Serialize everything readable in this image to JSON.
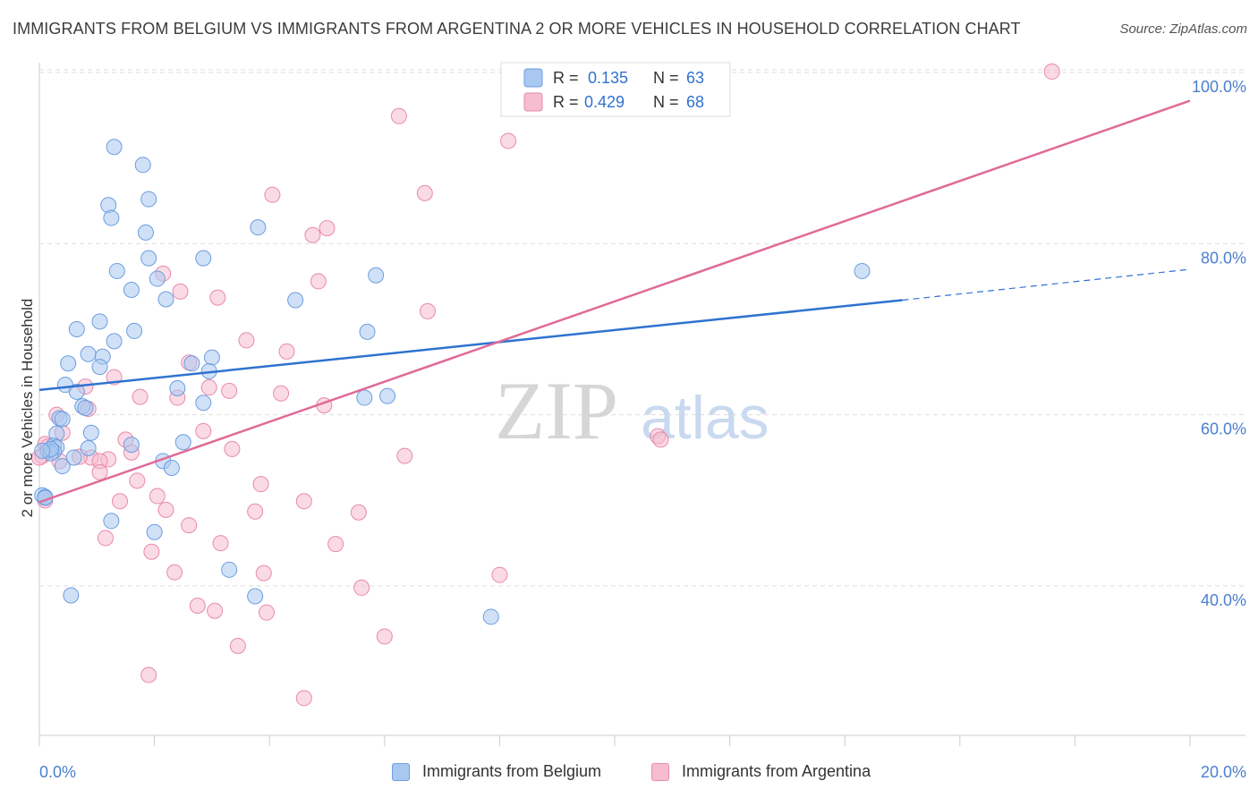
{
  "title": "IMMIGRANTS FROM BELGIUM VS IMMIGRANTS FROM ARGENTINA 2 OR MORE VEHICLES IN HOUSEHOLD CORRELATION CHART",
  "source": "Source: ZipAtlas.com",
  "watermark": {
    "zip": "ZIP",
    "atlas": "atlas"
  },
  "colors": {
    "belgium_fill": "#a9c8f0",
    "belgium_stroke": "#6d9de0",
    "belgium_line": "#2f72d0",
    "argentina_fill": "#f6bcd0",
    "argentina_stroke": "#e88aab",
    "argentina_line": "#e06a97",
    "axis_text": "#4a7fcf",
    "grid": "#dddddd"
  },
  "legend_top": {
    "rows": [
      {
        "r_label": "R =",
        "r_value": "0.135",
        "n_label": "N =",
        "n_value": "63"
      },
      {
        "r_label": "R =",
        "r_value": "0.429",
        "n_label": "N =",
        "n_value": "68"
      }
    ]
  },
  "legend_bottom": {
    "belgium": "Immigrants from Belgium",
    "argentina": "Immigrants from Argentina"
  },
  "chart_data": {
    "type": "scatter",
    "title": "IMMIGRANTS FROM BELGIUM VS IMMIGRANTS FROM ARGENTINA 2 OR MORE VEHICLES IN HOUSEHOLD CORRELATION CHART",
    "xlabel": "",
    "ylabel": "2 or more Vehicles in Household",
    "xlim": [
      0,
      20
    ],
    "ylim": [
      18,
      101
    ],
    "x_tick_labels": [
      "0.0%",
      "20.0%"
    ],
    "y_tick_labels": [
      "40.0%",
      "60.0%",
      "80.0%",
      "100.0%"
    ],
    "y_ticks": [
      40,
      60,
      80,
      100
    ],
    "grid": true,
    "legend_position": "top-center",
    "series": [
      {
        "name": "Immigrants from Belgium",
        "R": 0.135,
        "N": 63,
        "trend": {
          "x": [
            0,
            15
          ],
          "y": [
            62.9,
            73.4
          ],
          "dashed_to": [
            20,
            77
          ]
        },
        "points": [
          [
            1.3,
            91.3
          ],
          [
            1.8,
            89.2
          ],
          [
            1.9,
            85.2
          ],
          [
            1.2,
            84.5
          ],
          [
            1.25,
            83.0
          ],
          [
            3.8,
            81.9
          ],
          [
            1.85,
            81.3
          ],
          [
            2.85,
            78.3
          ],
          [
            1.9,
            78.3
          ],
          [
            1.35,
            76.8
          ],
          [
            2.05,
            75.9
          ],
          [
            5.85,
            76.3
          ],
          [
            14.3,
            76.8
          ],
          [
            1.6,
            74.6
          ],
          [
            2.2,
            73.5
          ],
          [
            4.45,
            73.4
          ],
          [
            1.05,
            70.9
          ],
          [
            0.65,
            70.0
          ],
          [
            1.65,
            69.8
          ],
          [
            5.7,
            69.7
          ],
          [
            1.3,
            68.6
          ],
          [
            0.85,
            67.1
          ],
          [
            1.1,
            66.8
          ],
          [
            3.0,
            66.7
          ],
          [
            0.5,
            66.0
          ],
          [
            2.65,
            66.0
          ],
          [
            1.05,
            65.6
          ],
          [
            2.95,
            65.1
          ],
          [
            0.45,
            63.5
          ],
          [
            2.4,
            63.1
          ],
          [
            0.65,
            62.7
          ],
          [
            0.75,
            61.0
          ],
          [
            0.8,
            60.8
          ],
          [
            2.85,
            61.4
          ],
          [
            5.65,
            62.0
          ],
          [
            6.05,
            62.2
          ],
          [
            0.35,
            59.6
          ],
          [
            0.4,
            59.5
          ],
          [
            0.9,
            57.9
          ],
          [
            0.3,
            57.8
          ],
          [
            0.25,
            56.4
          ],
          [
            0.3,
            56.2
          ],
          [
            1.6,
            56.5
          ],
          [
            2.5,
            56.8
          ],
          [
            0.85,
            56.1
          ],
          [
            0.15,
            55.8
          ],
          [
            0.25,
            55.7
          ],
          [
            0.2,
            55.5
          ],
          [
            0.6,
            55.0
          ],
          [
            2.15,
            54.6
          ],
          [
            0.4,
            54.0
          ],
          [
            2.3,
            53.8
          ],
          [
            0.05,
            50.6
          ],
          [
            0.1,
            50.4
          ],
          [
            1.25,
            47.6
          ],
          [
            2.0,
            46.3
          ],
          [
            3.3,
            41.9
          ],
          [
            0.55,
            38.9
          ],
          [
            3.75,
            38.8
          ],
          [
            7.85,
            36.4
          ],
          [
            0.1,
            50.3
          ],
          [
            0.2,
            56.0
          ],
          [
            0.05,
            55.8
          ]
        ]
      },
      {
        "name": "Immigrants from Argentina",
        "R": 0.429,
        "N": 68,
        "trend": {
          "x": [
            0,
            20
          ],
          "y": [
            49.8,
            96.7
          ]
        },
        "points": [
          [
            17.6,
            100.1
          ],
          [
            6.25,
            94.9
          ],
          [
            8.15,
            92.0
          ],
          [
            6.7,
            85.9
          ],
          [
            4.05,
            85.7
          ],
          [
            5.0,
            81.8
          ],
          [
            4.75,
            81.0
          ],
          [
            2.15,
            76.5
          ],
          [
            4.85,
            75.6
          ],
          [
            2.45,
            74.4
          ],
          [
            3.1,
            73.7
          ],
          [
            6.75,
            72.1
          ],
          [
            3.6,
            68.7
          ],
          [
            4.3,
            67.4
          ],
          [
            2.6,
            66.1
          ],
          [
            1.3,
            64.4
          ],
          [
            0.8,
            63.3
          ],
          [
            3.3,
            62.8
          ],
          [
            2.95,
            63.2
          ],
          [
            4.2,
            62.5
          ],
          [
            1.75,
            62.1
          ],
          [
            2.4,
            62.0
          ],
          [
            4.95,
            61.1
          ],
          [
            0.85,
            60.7
          ],
          [
            0.3,
            60.0
          ],
          [
            2.85,
            58.1
          ],
          [
            0.4,
            57.9
          ],
          [
            10.75,
            57.5
          ],
          [
            10.8,
            57.1
          ],
          [
            1.5,
            57.1
          ],
          [
            3.35,
            56.0
          ],
          [
            0.1,
            56.6
          ],
          [
            0.15,
            56.3
          ],
          [
            1.6,
            55.6
          ],
          [
            6.35,
            55.2
          ],
          [
            0.9,
            55.0
          ],
          [
            0.7,
            55.1
          ],
          [
            1.2,
            54.8
          ],
          [
            0.35,
            54.6
          ],
          [
            0.05,
            55.2
          ],
          [
            1.05,
            54.6
          ],
          [
            1.05,
            53.3
          ],
          [
            1.7,
            52.3
          ],
          [
            3.85,
            51.9
          ],
          [
            2.05,
            50.5
          ],
          [
            0.1,
            50.0
          ],
          [
            1.4,
            49.9
          ],
          [
            4.6,
            49.9
          ],
          [
            2.2,
            48.9
          ],
          [
            3.75,
            48.7
          ],
          [
            5.55,
            48.6
          ],
          [
            2.6,
            47.1
          ],
          [
            1.15,
            45.6
          ],
          [
            3.15,
            45.0
          ],
          [
            5.15,
            44.9
          ],
          [
            1.95,
            44.0
          ],
          [
            2.35,
            41.6
          ],
          [
            3.9,
            41.5
          ],
          [
            8.0,
            41.3
          ],
          [
            5.6,
            39.8
          ],
          [
            2.75,
            37.7
          ],
          [
            3.05,
            37.1
          ],
          [
            3.95,
            36.9
          ],
          [
            6.0,
            34.1
          ],
          [
            3.45,
            33.0
          ],
          [
            1.9,
            29.6
          ],
          [
            4.6,
            26.9
          ],
          [
            0.0,
            55.0
          ]
        ]
      }
    ]
  }
}
